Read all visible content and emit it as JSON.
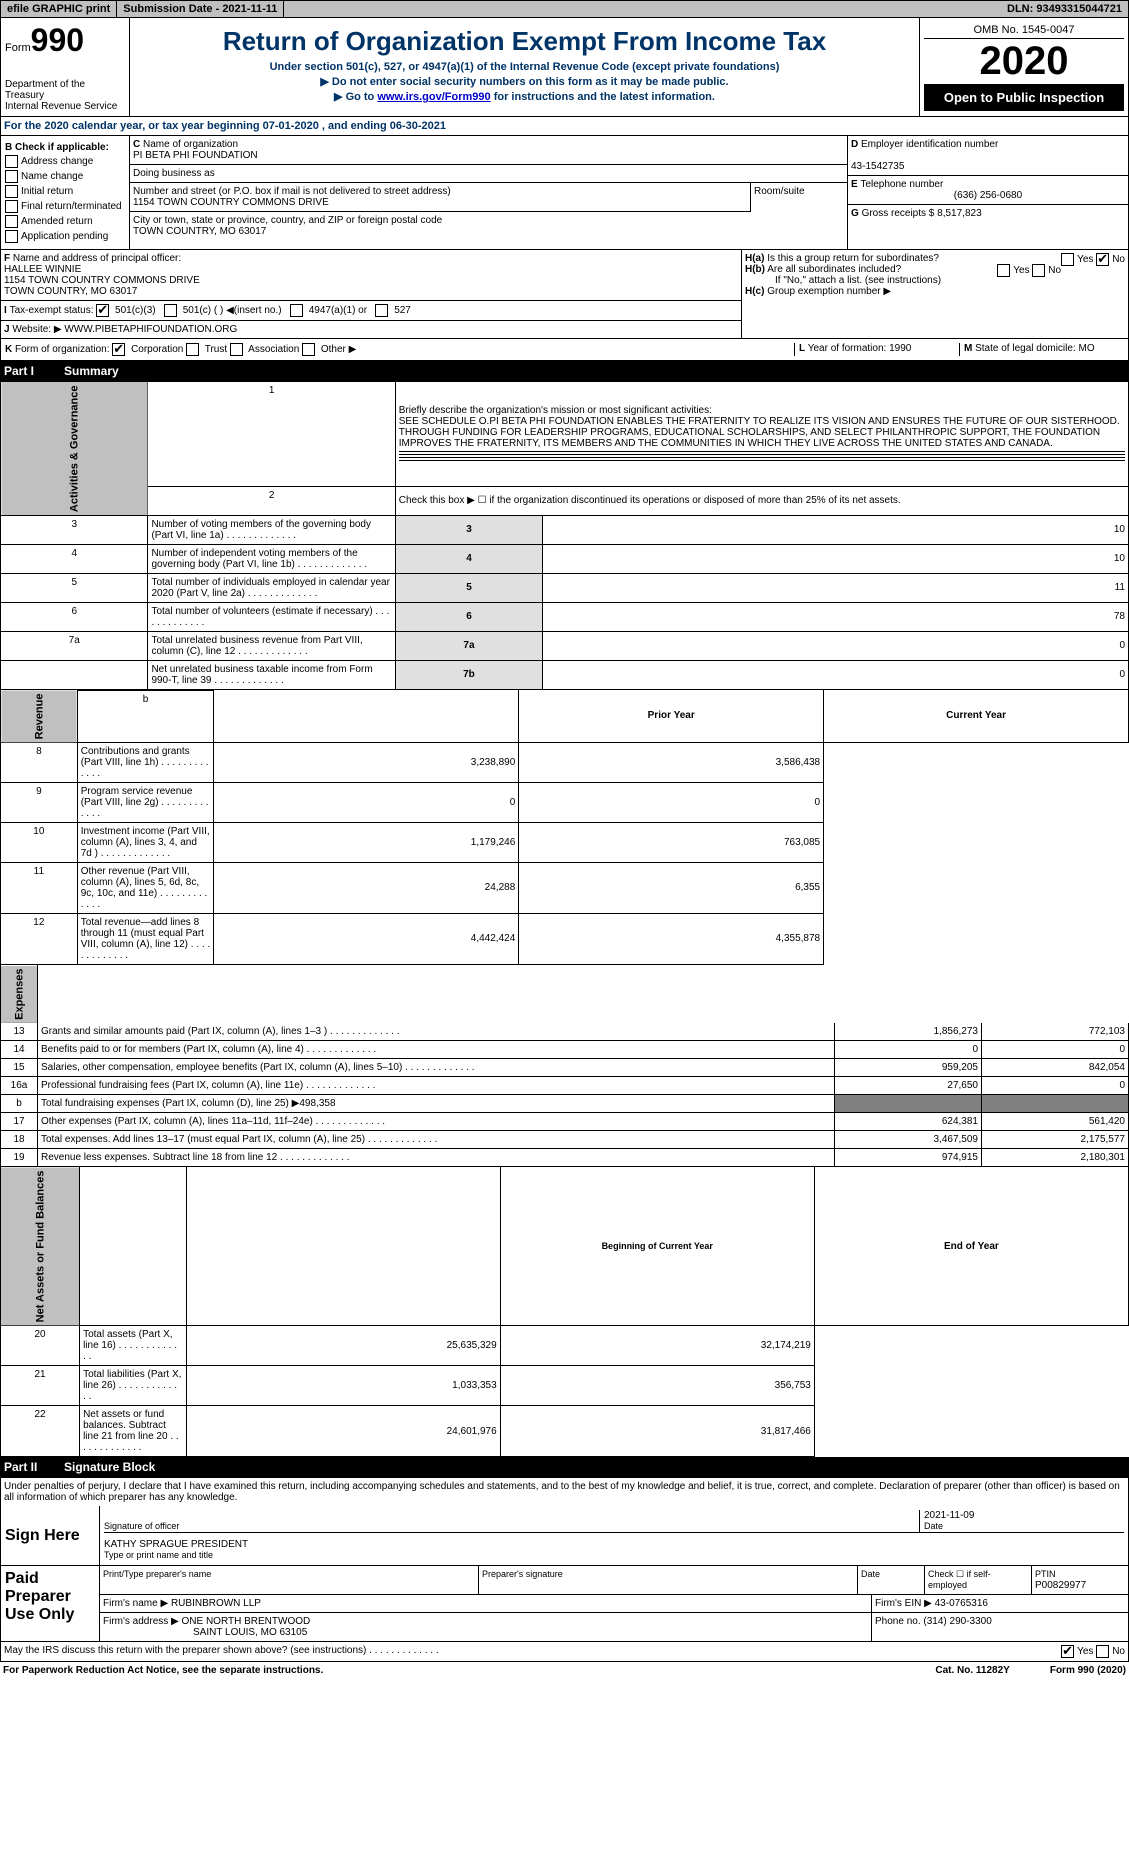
{
  "topbar": {
    "efile": "efile GRAPHIC print",
    "sub": "Submission Date - 2021-11-11",
    "dln": "DLN: 93493315044721"
  },
  "hdr": {
    "form": "Form",
    "num": "990",
    "dept": "Department of the Treasury",
    "irs": "Internal Revenue Service",
    "title": "Return of Organization Exempt From Income Tax",
    "sub1": "Under section 501(c), 527, or 4947(a)(1) of the Internal Revenue Code (except private foundations)",
    "sub2": "▶ Do not enter social security numbers on this form as it may be made public.",
    "sub3a": "▶ Go to ",
    "link": "www.irs.gov/Form990",
    "sub3b": " for instructions and the latest information.",
    "omb": "OMB No. 1545-0047",
    "year": "2020",
    "open": "Open to Public Inspection"
  },
  "A": {
    "text": "For the 2020 calendar year, or tax year beginning 07-01-2020   , and ending 06-30-2021"
  },
  "B": {
    "label": "Check if applicable:",
    "items": [
      "Address change",
      "Name change",
      "Initial return",
      "Final return/terminated",
      "Amended return",
      "Application pending"
    ]
  },
  "C": {
    "name_lbl": "Name of organization",
    "name": "PI BETA PHI FOUNDATION",
    "dba": "Doing business as",
    "addr_lbl": "Number and street (or P.O. box if mail is not delivered to street address)",
    "addr": "1154 TOWN COUNTRY COMMONS DRIVE",
    "room": "Room/suite",
    "city_lbl": "City or town, state or province, country, and ZIP or foreign postal code",
    "city": "TOWN COUNTRY, MO  63017"
  },
  "D": {
    "lbl": "Employer identification number",
    "val": "43-1542735"
  },
  "E": {
    "lbl": "Telephone number",
    "val": "(636) 256-0680"
  },
  "G": {
    "lbl": "Gross receipts $",
    "val": "8,517,823"
  },
  "F": {
    "lbl": "Name and address of principal officer:",
    "name": "HALLEE WINNIE",
    "addr": "1154 TOWN COUNTRY COMMONS DRIVE",
    "city": "TOWN COUNTRY, MO  63017"
  },
  "I": {
    "lbl": "Tax-exempt status:",
    "o1": "501(c)(3)",
    "o2": "501(c) (  ) ◀(insert no.)",
    "o3": "4947(a)(1) or",
    "o4": "527"
  },
  "J": {
    "lbl": "Website: ▶",
    "val": "WWW.PIBETAPHIFOUNDATION.ORG"
  },
  "H": {
    "a": "Is this a group return for subordinates?",
    "b": "Are all subordinates included?",
    "c_lbl": "If \"No,\" attach a list. (see instructions)",
    "c": "Group exemption number ▶",
    "yes": "Yes",
    "no": "No"
  },
  "K": {
    "lbl": "Form of organization:",
    "o1": "Corporation",
    "o2": "Trust",
    "o3": "Association",
    "o4": "Other ▶"
  },
  "L": {
    "lbl": "Year of formation:",
    "val": "1990"
  },
  "M": {
    "lbl": "State of legal domicile:",
    "val": "MO"
  },
  "part1": {
    "pn": "Part I",
    "title": "Summary",
    "q1": "Briefly describe the organization's mission or most significant activities:",
    "mission": "SEE SCHEDULE O.PI BETA PHI FOUNDATION ENABLES THE FRATERNITY TO REALIZE ITS VISION AND ENSURES THE FUTURE OF OUR SISTERHOOD. THROUGH FUNDING FOR LEADERSHIP PROGRAMS, EDUCATIONAL SCHOLARSHIPS, AND SELECT PHILANTHROPIC SUPPORT, THE FOUNDATION IMPROVES THE FRATERNITY, ITS MEMBERS AND THE COMMUNITIES IN WHICH THEY LIVE ACROSS THE UNITED STATES AND CANADA.",
    "q2": "Check this box ▶ ☐  if the organization discontinued its operations or disposed of more than 25% of its net assets.",
    "sec_gov": "Activities & Governance",
    "sec_rev": "Revenue",
    "sec_exp": "Expenses",
    "sec_net": "Net Assets or Fund Balances",
    "rows_gov": [
      {
        "n": "3",
        "t": "Number of voting members of the governing body (Part VI, line 1a)",
        "c": "3",
        "v": "10"
      },
      {
        "n": "4",
        "t": "Number of independent voting members of the governing body (Part VI, line 1b)",
        "c": "4",
        "v": "10"
      },
      {
        "n": "5",
        "t": "Total number of individuals employed in calendar year 2020 (Part V, line 2a)",
        "c": "5",
        "v": "11"
      },
      {
        "n": "6",
        "t": "Total number of volunteers (estimate if necessary)",
        "c": "6",
        "v": "78"
      },
      {
        "n": "7a",
        "t": "Total unrelated business revenue from Part VIII, column (C), line 12",
        "c": "7a",
        "v": "0"
      },
      {
        "n": "",
        "t": "Net unrelated business taxable income from Form 990-T, line 39",
        "c": "7b",
        "v": "0"
      }
    ],
    "prior": "Prior Year",
    "current": "Current Year",
    "rows_rev": [
      {
        "n": "8",
        "t": "Contributions and grants (Part VIII, line 1h)",
        "p": "3,238,890",
        "c": "3,586,438"
      },
      {
        "n": "9",
        "t": "Program service revenue (Part VIII, line 2g)",
        "p": "0",
        "c": "0"
      },
      {
        "n": "10",
        "t": "Investment income (Part VIII, column (A), lines 3, 4, and 7d )",
        "p": "1,179,246",
        "c": "763,085"
      },
      {
        "n": "11",
        "t": "Other revenue (Part VIII, column (A), lines 5, 6d, 8c, 9c, 10c, and 11e)",
        "p": "24,288",
        "c": "6,355"
      },
      {
        "n": "12",
        "t": "Total revenue—add lines 8 through 11 (must equal Part VIII, column (A), line 12)",
        "p": "4,442,424",
        "c": "4,355,878"
      }
    ],
    "rows_exp": [
      {
        "n": "13",
        "t": "Grants and similar amounts paid (Part IX, column (A), lines 1–3 )",
        "p": "1,856,273",
        "c": "772,103"
      },
      {
        "n": "14",
        "t": "Benefits paid to or for members (Part IX, column (A), line 4)",
        "p": "0",
        "c": "0"
      },
      {
        "n": "15",
        "t": "Salaries, other compensation, employee benefits (Part IX, column (A), lines 5–10)",
        "p": "959,205",
        "c": "842,054"
      },
      {
        "n": "16a",
        "t": "Professional fundraising fees (Part IX, column (A), line 11e)",
        "p": "27,650",
        "c": "0"
      },
      {
        "n": "b",
        "t": "Total fundraising expenses (Part IX, column (D), line 25) ▶498,358",
        "p": "",
        "c": "",
        "grey": true
      },
      {
        "n": "17",
        "t": "Other expenses (Part IX, column (A), lines 11a–11d, 11f–24e)",
        "p": "624,381",
        "c": "561,420"
      },
      {
        "n": "18",
        "t": "Total expenses. Add lines 13–17 (must equal Part IX, column (A), line 25)",
        "p": "3,467,509",
        "c": "2,175,577"
      },
      {
        "n": "19",
        "t": "Revenue less expenses. Subtract line 18 from line 12",
        "p": "974,915",
        "c": "2,180,301"
      }
    ],
    "boy": "Beginning of Current Year",
    "eoy": "End of Year",
    "rows_net": [
      {
        "n": "20",
        "t": "Total assets (Part X, line 16)",
        "p": "25,635,329",
        "c": "32,174,219"
      },
      {
        "n": "21",
        "t": "Total liabilities (Part X, line 26)",
        "p": "1,033,353",
        "c": "356,753"
      },
      {
        "n": "22",
        "t": "Net assets or fund balances. Subtract line 21 from line 20",
        "p": "24,601,976",
        "c": "31,817,466"
      }
    ]
  },
  "part2": {
    "pn": "Part II",
    "title": "Signature Block",
    "decl": "Under penalties of perjury, I declare that I have examined this return, including accompanying schedules and statements, and to the best of my knowledge and belief, it is true, correct, and complete. Declaration of preparer (other than officer) is based on all information of which preparer has any knowledge.",
    "sign": "Sign Here",
    "sig_off": "Signature of officer",
    "date": "Date",
    "sig_date": "2021-11-09",
    "officer": "KATHY SPRAGUE  PRESIDENT",
    "type": "Type or print name and title",
    "paid": "Paid Preparer Use Only",
    "prep_name": "Print/Type preparer's name",
    "prep_sig": "Preparer's signature",
    "prep_date": "Date",
    "self": "Check ☐ if self-employed",
    "ptin_lbl": "PTIN",
    "ptin": "P00829977",
    "firm_lbl": "Firm's name    ▶",
    "firm": "RUBINBROWN LLP",
    "ein_lbl": "Firm's EIN ▶",
    "ein": "43-0765316",
    "faddr_lbl": "Firm's address ▶",
    "faddr1": "ONE NORTH BRENTWOOD",
    "faddr2": "SAINT LOUIS, MO  63105",
    "phone_lbl": "Phone no.",
    "phone": "(314) 290-3300",
    "discuss": "May the IRS discuss this return with the preparer shown above? (see instructions)"
  },
  "foot": {
    "l": "For Paperwork Reduction Act Notice, see the separate instructions.",
    "m": "Cat. No. 11282Y",
    "r": "Form 990 (2020)"
  }
}
